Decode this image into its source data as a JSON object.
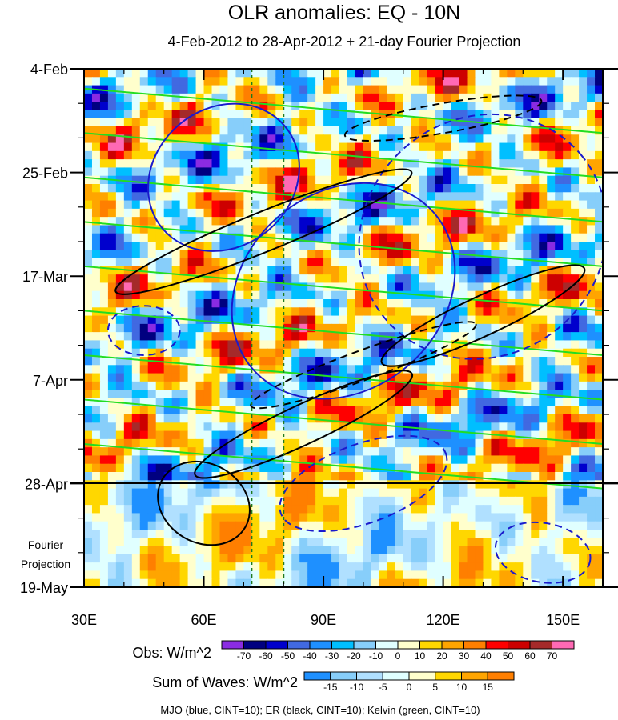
{
  "chart_data": {
    "type": "heatmap",
    "title": "OLR anomalies: EQ - 10N",
    "subtitle": "4-Feb-2012 to 28-Apr-2012 + 21-day Fourier Projection",
    "x_ticks": [
      "30E",
      "60E",
      "90E",
      "120E",
      "150E"
    ],
    "x_tick_values": [
      30,
      60,
      90,
      120,
      150
    ],
    "xlim": [
      30,
      160
    ],
    "y_ticks": [
      "4-Feb",
      "25-Feb",
      "17-Mar",
      "7-Apr",
      "28-Apr",
      "19-May"
    ],
    "y_tick_days": [
      0,
      21,
      42,
      63,
      84,
      105
    ],
    "ylim_days": [
      0,
      105
    ],
    "observation_end_day": 84,
    "fourier_label": [
      "Fourier",
      "Projection"
    ],
    "reference_longitudes": [
      72,
      80
    ],
    "obs_colorbar": {
      "label": "Obs: W/m^2",
      "levels": [
        "-70",
        "-60",
        "-50",
        "-40",
        "-30",
        "-20",
        "-10",
        "0",
        "10",
        "20",
        "30",
        "40",
        "50",
        "60",
        "70"
      ],
      "colors": [
        "#8a2be2",
        "#000080",
        "#0000cd",
        "#4169e1",
        "#1e90ff",
        "#00bfff",
        "#87cefa",
        "#e0ffff",
        "#ffffcc",
        "#ffd700",
        "#ffa500",
        "#ff7f00",
        "#ff0000",
        "#cd0000",
        "#a52a2a",
        "#ff69b4"
      ]
    },
    "waves_colorbar": {
      "label": "Sum of Waves: W/m^2",
      "levels": [
        "-15",
        "-10",
        "-5",
        "0",
        "5",
        "10",
        "15"
      ],
      "colors": [
        "#1e90ff",
        "#87cefa",
        "#b0e0ff",
        "#e0ffff",
        "#ffffcc",
        "#ffd700",
        "#ffa500",
        "#ff7f00"
      ]
    },
    "legend_note": "MJO (blue, CINT=10); ER (black, CINT=10); Kelvin (green, CINT=10)"
  }
}
